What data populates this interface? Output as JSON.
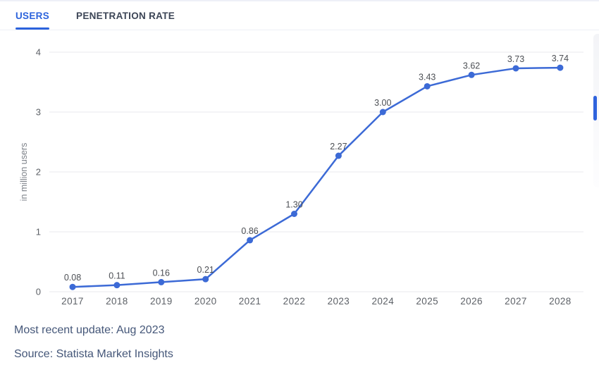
{
  "tabs": [
    {
      "label": "USERS",
      "active": true
    },
    {
      "label": "PENETRATION RATE",
      "active": false
    }
  ],
  "chart_data": {
    "type": "line",
    "categories": [
      "2017",
      "2018",
      "2019",
      "2020",
      "2021",
      "2022",
      "2023",
      "2024",
      "2025",
      "2026",
      "2027",
      "2028"
    ],
    "values": [
      0.08,
      0.11,
      0.16,
      0.21,
      0.86,
      1.3,
      2.27,
      3.0,
      3.43,
      3.62,
      3.73,
      3.74
    ],
    "point_labels": [
      "0.08",
      "0.11",
      "0.16",
      "0.21",
      "0.86",
      "1.30",
      "2.27",
      "3.00",
      "3.43",
      "3.62",
      "3.73",
      "3.74"
    ],
    "title": "",
    "xlabel": "",
    "ylabel": "in million users",
    "yticks": [
      0,
      1,
      2,
      3,
      4
    ],
    "ylim": [
      0,
      4
    ],
    "grid": true,
    "legend": "none"
  },
  "footer": {
    "update": "Most recent update: Aug 2023",
    "source": "Source: Statista Market Insights"
  },
  "colors": {
    "accent": "#2c63dc",
    "line": "#3c6ad6",
    "grid": "#e8eaee",
    "tick_text": "#5d6167",
    "label_text": "#4c4f54",
    "axis_title": "#7d8289",
    "footer_text": "#455779",
    "tab_inactive": "#3c4556",
    "border": "#eef0f7",
    "scrollbar_thumb": "#2f63dd",
    "scrollbar_track": "#f3f4f7"
  }
}
